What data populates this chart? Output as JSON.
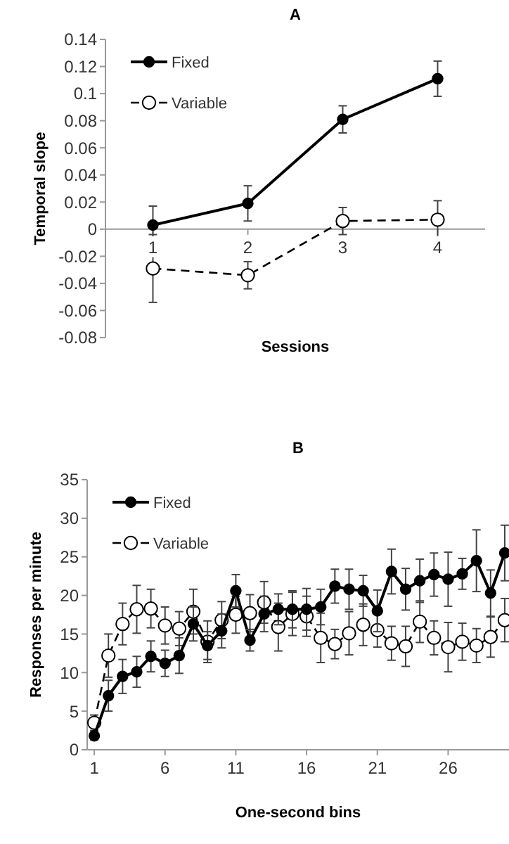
{
  "chart_data": [
    {
      "type": "line",
      "title": "A",
      "xlabel": "Sessions",
      "ylabel": "Temporal slope",
      "categories": [
        "1",
        "2",
        "3",
        "4"
      ],
      "ylim": [
        -0.08,
        0.14
      ],
      "yticks": [
        -0.08,
        -0.06,
        -0.04,
        -0.02,
        0,
        0.02,
        0.04,
        0.06,
        0.08,
        0.1,
        0.12,
        0.14
      ],
      "grid": false,
      "legend": "top left",
      "marker": "circle",
      "series": [
        {
          "name": "Fixed",
          "color": "#000000",
          "line_style": "solid",
          "values": [
            0.003,
            0.019,
            0.081,
            0.111
          ],
          "errors": [
            0.014,
            0.013,
            0.01,
            0.013
          ]
        },
        {
          "name": "Variable",
          "color": "#000000",
          "line_style": "dashed",
          "values": [
            -0.029,
            -0.034,
            0.006,
            0.007
          ],
          "errors": [
            0.025,
            0.01,
            0.01,
            0.014
          ]
        }
      ]
    },
    {
      "type": "line",
      "title": "B",
      "xlabel": "One-second bins",
      "ylabel": "Responses per minute",
      "x": [
        1,
        2,
        3,
        4,
        5,
        6,
        7,
        8,
        9,
        10,
        11,
        12,
        13,
        14,
        15,
        16,
        17,
        18,
        19,
        20,
        21,
        22,
        23,
        24,
        25,
        26,
        27,
        28,
        29,
        30
      ],
      "xlim": [
        0.5,
        30.3
      ],
      "xticks": [
        1,
        6,
        11,
        16,
        21,
        26
      ],
      "ylim": [
        0,
        35
      ],
      "yticks": [
        0,
        5,
        10,
        15,
        20,
        25,
        30,
        35
      ],
      "grid": false,
      "legend": "top left",
      "marker": "circle",
      "series": [
        {
          "name": "Fixed",
          "color": "#000000",
          "line_style": "solid",
          "values": [
            1.8,
            7.0,
            9.5,
            10.1,
            12.1,
            11.2,
            12.2,
            16.3,
            13.5,
            15.4,
            20.6,
            14.2,
            17.6,
            18.2,
            18.2,
            18.2,
            18.5,
            21.2,
            20.8,
            20.6,
            18.0,
            23.1,
            20.8,
            21.9,
            22.7,
            22.1,
            22.8,
            24.5,
            20.3,
            25.5
          ],
          "errors": [
            0.5,
            2,
            2.2,
            2,
            2,
            1.7,
            2.3,
            2.2,
            1.8,
            2.2,
            2.1,
            1.4,
            2.3,
            2,
            2.4,
            2.7,
            2.3,
            2.2,
            2.6,
            2,
            2.7,
            2.9,
            2.7,
            2.8,
            2.8,
            3.5,
            2,
            4,
            3,
            3.6
          ]
        },
        {
          "name": "Variable",
          "color": "#000000",
          "line_style": "dashed",
          "values": [
            3.5,
            12.2,
            16.3,
            18.2,
            18.3,
            16.1,
            15.7,
            17.9,
            14.0,
            16.8,
            17.5,
            17.7,
            19.1,
            15.9,
            17.6,
            17.3,
            14.5,
            13.7,
            15.1,
            16.2,
            15.5,
            13.8,
            13.4,
            16.6,
            14.5,
            13.3,
            14.0,
            13.5,
            14.6,
            16.8
          ],
          "errors": [
            1,
            2.8,
            2.7,
            3.1,
            2.5,
            2.4,
            2.2,
            2.9,
            2.7,
            2.4,
            2.4,
            2.4,
            2.7,
            3.1,
            2.8,
            2.6,
            3.2,
            1.9,
            2.8,
            2.7,
            2.2,
            2.2,
            2.6,
            2.7,
            2.2,
            3.2,
            2.4,
            2.2,
            2.6,
            2.8
          ]
        }
      ]
    }
  ]
}
